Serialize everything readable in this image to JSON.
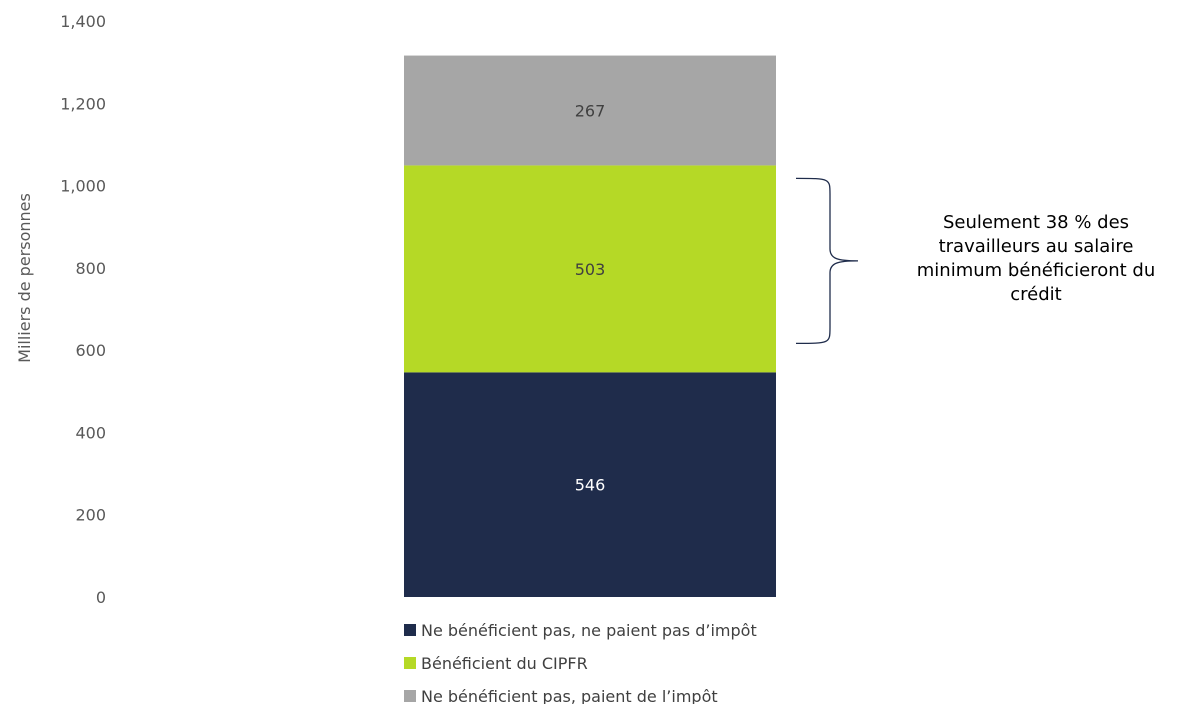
{
  "chart_data": {
    "type": "bar",
    "stacked": true,
    "categories": [
      ""
    ],
    "ylabel": "Milliers de personnes",
    "ylim": [
      0,
      1400
    ],
    "yticks": [
      0,
      200,
      400,
      600,
      800,
      1000,
      1200,
      1400
    ],
    "ytick_labels": [
      "0",
      "200",
      "400",
      "600",
      "800",
      "1,000",
      "1,200",
      "1,400"
    ],
    "grid": false,
    "legend_position": "bottom",
    "series": [
      {
        "name": "Ne bénéficient pas, ne paient pas d’impôt",
        "values": [
          546
        ],
        "color": "#1f2c4b",
        "label_color": "#ffffff"
      },
      {
        "name": "Bénéficient du CIPFR",
        "values": [
          503
        ],
        "color": "#b5d926",
        "label_color": "#404040"
      },
      {
        "name": "Ne bénéficient pas, paient de l’impôt",
        "values": [
          267
        ],
        "color": "#a6a6a6",
        "label_color": "#404040"
      }
    ],
    "annotation": {
      "lines": [
        "Seulement 38 % des",
        "travailleurs au salaire",
        "minimum bénéficieront du",
        "crédit"
      ],
      "bracket_range": [
        546,
        1049
      ]
    }
  }
}
